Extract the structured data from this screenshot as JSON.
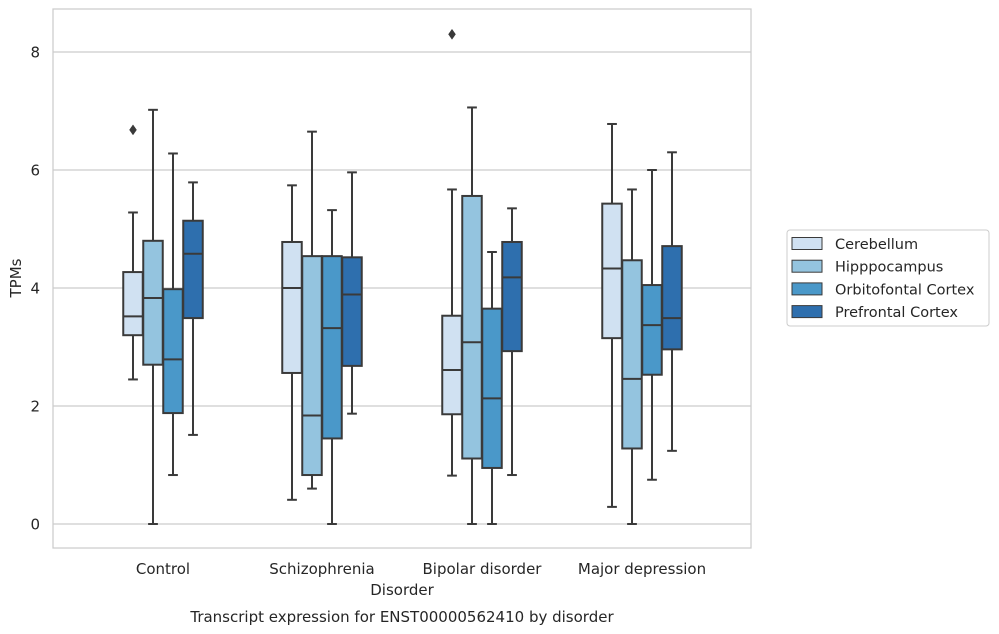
{
  "chart_data": {
    "type": "box",
    "title": "Transcript expression for ENST00000562410 by disorder",
    "xlabel": "Disorder",
    "ylabel": "TPMs",
    "ylim": [
      -0.4,
      8.75
    ],
    "yticks": [
      0,
      2,
      4,
      6,
      8
    ],
    "grid": true,
    "legend_position": "right-center",
    "categories": [
      "Control",
      "Schizophrenia",
      "Bipolar disorder",
      "Major depression"
    ],
    "series": [
      {
        "name": "Cerebellum",
        "color": "#d0e1f2",
        "boxes": [
          {
            "whisker_low": 2.45,
            "q1": 3.2,
            "median": 3.52,
            "q3": 4.27,
            "whisker_high": 5.28,
            "outliers": [
              6.68
            ]
          },
          {
            "whisker_low": 0.41,
            "q1": 2.56,
            "median": 4.0,
            "q3": 4.78,
            "whisker_high": 5.74,
            "outliers": []
          },
          {
            "whisker_low": 0.82,
            "q1": 1.86,
            "median": 2.61,
            "q3": 3.53,
            "whisker_high": 5.67,
            "outliers": [
              8.3
            ]
          },
          {
            "whisker_low": 0.29,
            "q1": 3.15,
            "median": 4.33,
            "q3": 5.43,
            "whisker_high": 6.78,
            "outliers": []
          }
        ]
      },
      {
        "name": "Hipppocampus",
        "color": "#94c4df",
        "boxes": [
          {
            "whisker_low": 0.0,
            "q1": 2.7,
            "median": 3.83,
            "q3": 4.8,
            "whisker_high": 7.02,
            "outliers": []
          },
          {
            "whisker_low": 0.6,
            "q1": 0.83,
            "median": 1.84,
            "q3": 4.54,
            "whisker_high": 6.65,
            "outliers": []
          },
          {
            "whisker_low": 0.0,
            "q1": 1.11,
            "median": 3.08,
            "q3": 5.56,
            "whisker_high": 7.06,
            "outliers": []
          },
          {
            "whisker_low": 0.0,
            "q1": 1.28,
            "median": 2.46,
            "q3": 4.47,
            "whisker_high": 5.67,
            "outliers": []
          }
        ]
      },
      {
        "name": "Orbitofontal Cortex",
        "color": "#4a98c9",
        "boxes": [
          {
            "whisker_low": 0.83,
            "q1": 1.88,
            "median": 2.79,
            "q3": 3.98,
            "whisker_high": 6.28,
            "outliers": []
          },
          {
            "whisker_low": 0.0,
            "q1": 1.45,
            "median": 3.32,
            "q3": 4.54,
            "whisker_high": 5.32,
            "outliers": []
          },
          {
            "whisker_low": 0.0,
            "q1": 0.95,
            "median": 2.13,
            "q3": 3.65,
            "whisker_high": 4.61,
            "outliers": []
          },
          {
            "whisker_low": 0.75,
            "q1": 2.53,
            "median": 3.37,
            "q3": 4.05,
            "whisker_high": 6.0,
            "outliers": []
          }
        ]
      },
      {
        "name": "Prefrontal Cortex",
        "color": "#2e6fae",
        "boxes": [
          {
            "whisker_low": 1.51,
            "q1": 3.49,
            "median": 4.58,
            "q3": 5.14,
            "whisker_high": 5.79,
            "outliers": []
          },
          {
            "whisker_low": 1.87,
            "q1": 2.68,
            "median": 3.89,
            "q3": 4.52,
            "whisker_high": 5.96,
            "outliers": []
          },
          {
            "whisker_low": 0.83,
            "q1": 2.93,
            "median": 4.18,
            "q3": 4.78,
            "whisker_high": 5.35,
            "outliers": []
          },
          {
            "whisker_low": 1.24,
            "q1": 2.96,
            "median": 3.49,
            "q3": 4.71,
            "whisker_high": 6.3,
            "outliers": []
          }
        ]
      }
    ]
  },
  "styles": {
    "line_color": "#3a3a3a",
    "grid_color": "#cccccc",
    "frame_color": "#cccccc"
  }
}
